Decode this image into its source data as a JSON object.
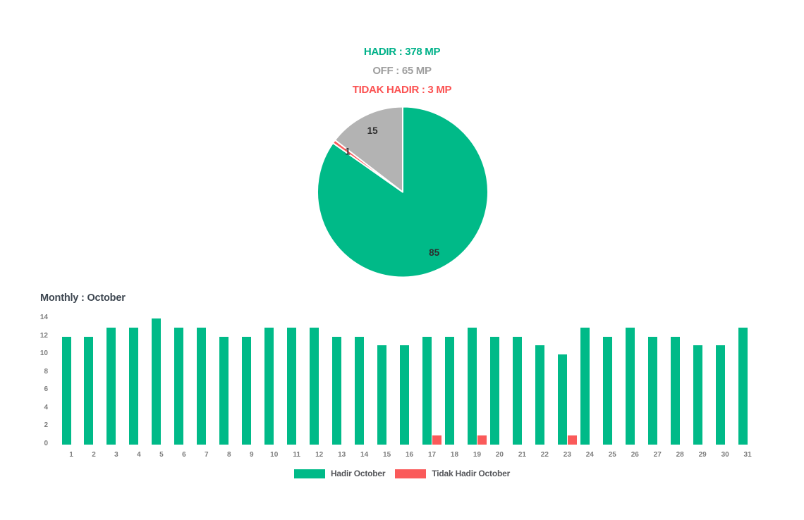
{
  "page": {
    "background": "#ffffff"
  },
  "header": {
    "lines": [
      {
        "text": "HADIR : 378 MP",
        "color": "#00B189"
      },
      {
        "text": "OFF : 65 MP",
        "color": "#9E9E9E"
      },
      {
        "text": "TIDAK HADIR : 3 MP",
        "color": "#FB5252"
      }
    ]
  },
  "chart_data": [
    {
      "type": "pie",
      "title": "",
      "start_angle_deg": 0,
      "direction": "clockwise",
      "stroke_color": "#ffffff",
      "slices": [
        {
          "label": "Hadir",
          "value": 378,
          "display_label": "85",
          "color": "#00BA88"
        },
        {
          "label": "Tidak Hadir",
          "value": 3,
          "display_label": "1",
          "color": "#FA5A5A"
        },
        {
          "label": "Off",
          "value": 65,
          "display_label": "15",
          "color": "#B3B3B3"
        }
      ]
    },
    {
      "type": "bar",
      "title": "Monthly : October",
      "categories": [
        "1",
        "2",
        "3",
        "4",
        "5",
        "6",
        "7",
        "8",
        "9",
        "10",
        "11",
        "12",
        "13",
        "14",
        "15",
        "16",
        "17",
        "18",
        "19",
        "20",
        "21",
        "22",
        "23",
        "24",
        "25",
        "26",
        "27",
        "28",
        "29",
        "30",
        "31"
      ],
      "series": [
        {
          "name": "Hadir October",
          "color": "#00BA88",
          "values": [
            12,
            12,
            13,
            13,
            14,
            13,
            13,
            12,
            12,
            13,
            13,
            13,
            12,
            12,
            11,
            11,
            12,
            12,
            13,
            12,
            12,
            11,
            10,
            13,
            12,
            13,
            12,
            12,
            11,
            11,
            13
          ]
        },
        {
          "name": "Tidak Hadir October",
          "color": "#FA5A5A",
          "values": [
            0,
            0,
            0,
            0,
            0,
            0,
            0,
            0,
            0,
            0,
            0,
            0,
            0,
            0,
            0,
            0,
            1,
            0,
            1,
            0,
            0,
            0,
            1,
            0,
            0,
            0,
            0,
            0,
            0,
            0,
            0
          ]
        }
      ],
      "ylim": [
        0,
        14
      ],
      "yticks": [
        0,
        2,
        4,
        6,
        8,
        10,
        12,
        14
      ],
      "grid": false,
      "legend_position": "bottom"
    }
  ]
}
